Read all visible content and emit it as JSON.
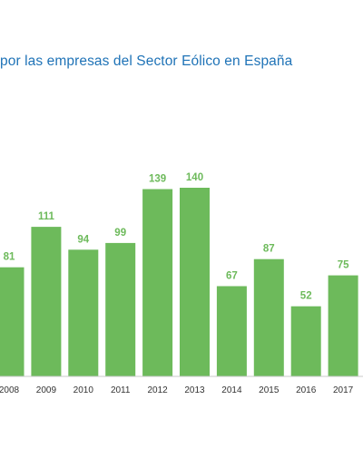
{
  "chart_data": {
    "type": "bar",
    "title": "por las empresas del Sector Eólico en España",
    "categories": [
      "2008",
      "2009",
      "2010",
      "2011",
      "2012",
      "2013",
      "2014",
      "2015",
      "2016",
      "2017"
    ],
    "values": [
      81,
      111,
      94,
      99,
      139,
      140,
      67,
      87,
      52,
      75
    ],
    "xlabel": "",
    "ylabel": "",
    "ylim": [
      0,
      160
    ],
    "grid": false,
    "bar_color": "#6dba5b",
    "label_color": "#6dba5b",
    "title_color": "#1f73b7",
    "axis_color": "#c8c8c8"
  }
}
